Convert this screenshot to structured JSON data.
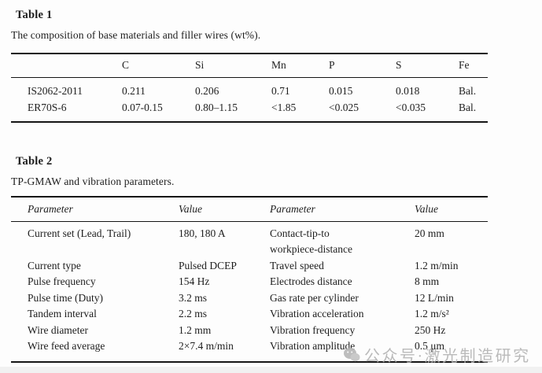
{
  "page": {
    "background": "#fdfdfd",
    "text_color": "#1e1e1e",
    "rule_color": "#151515",
    "watermark_color": "#b3b3b3"
  },
  "table1": {
    "title": "Table 1",
    "caption": "The composition of base materials and filler wires (wt%).",
    "columns": [
      "",
      "C",
      "Si",
      "Mn",
      "P",
      "S",
      "Fe"
    ],
    "rows": [
      [
        "IS2062-2011",
        "0.211",
        "0.206",
        "0.71",
        "0.015",
        "0.018",
        "Bal."
      ],
      [
        "ER70S-6",
        "0.07-0.15",
        "0.80–1.15",
        "<1.85",
        "<0.025",
        "<0.035",
        "Bal."
      ]
    ]
  },
  "table2": {
    "title": "Table 2",
    "caption": "TP-GMAW and vibration parameters.",
    "columns": [
      "Parameter",
      "Value",
      "Parameter",
      "Value"
    ],
    "rows": [
      [
        "Current set (Lead, Trail)",
        "180, 180 A",
        "Contact-tip-to\nworkpiece-distance",
        "20 mm"
      ],
      [
        "Current type",
        "Pulsed DCEP",
        "Travel speed",
        "1.2 m/min"
      ],
      [
        "Pulse frequency",
        "154 Hz",
        "Electrodes distance",
        "8 mm"
      ],
      [
        "Pulse time (Duty)",
        "3.2 ms",
        "Gas rate per cylinder",
        "12 L/min"
      ],
      [
        "Tandem interval",
        "2.2 ms",
        "Vibration acceleration",
        "1.2 m/s²"
      ],
      [
        "Wire diameter",
        "1.2 mm",
        "Vibration frequency",
        "250 Hz"
      ],
      [
        "Wire feed average",
        "2×7.4 m/min",
        "Vibration amplitude",
        "0.5 μm"
      ]
    ]
  },
  "watermark": {
    "icon": "wechat-icon",
    "text": "公众号·激光制造研究"
  }
}
